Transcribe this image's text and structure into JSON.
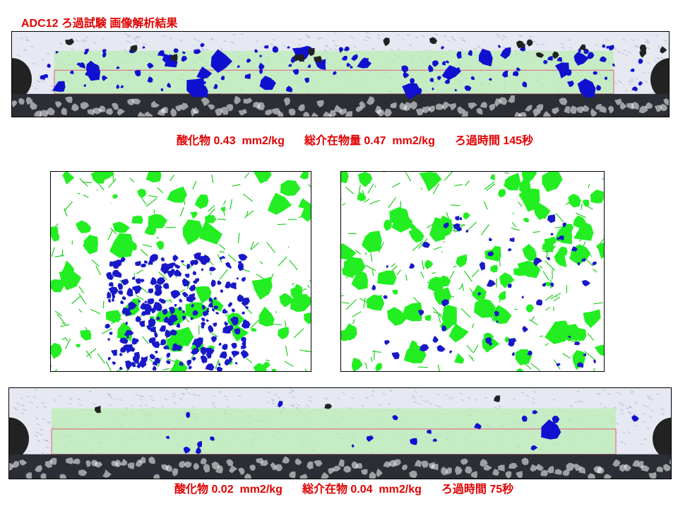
{
  "header": {
    "title": "ADC12 ろ過試験 画像解析結果"
  },
  "top_result": {
    "items": [
      "酸化物 0.43  mm2/kg",
      "総介在物量 0.47  mm2/kg",
      "ろ過時間 145秒"
    ]
  },
  "bottom_result": {
    "items": [
      "酸化物 0.02  mm2/kg",
      "総介在物 0.04  mm2/kg",
      "ろ過時間 75秒"
    ]
  }
}
